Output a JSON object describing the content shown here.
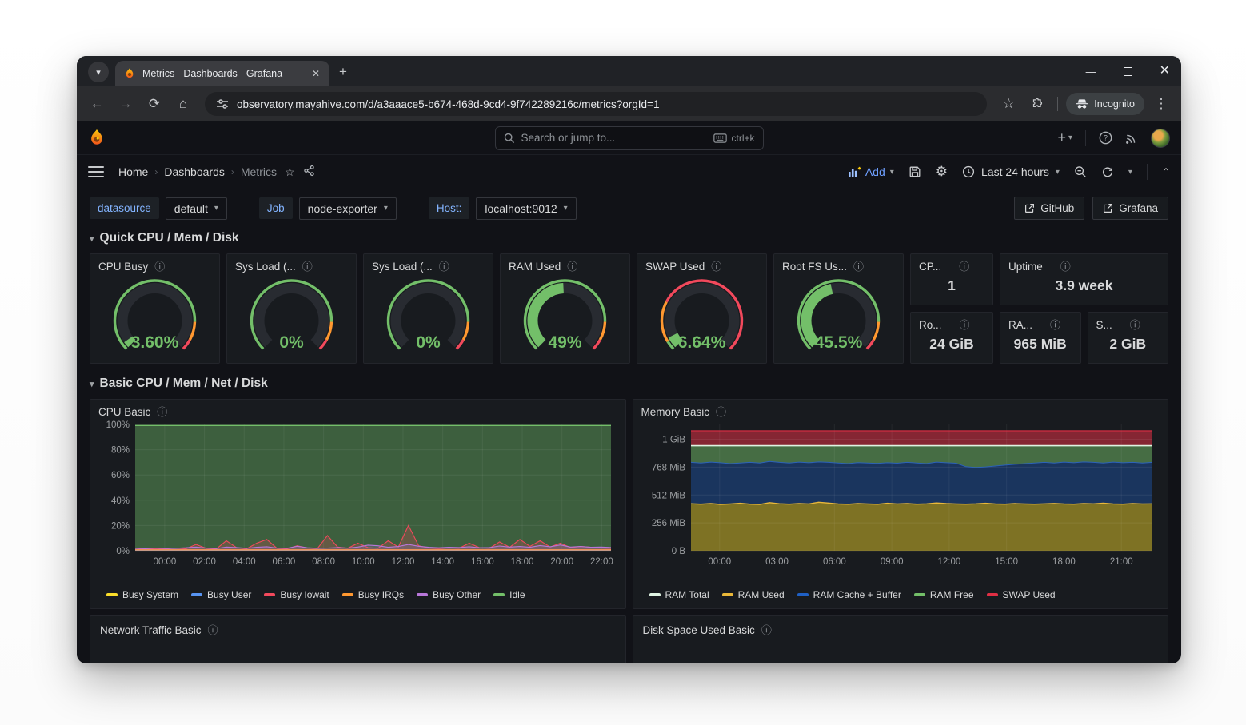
{
  "browser": {
    "tab_title": "Metrics - Dashboards - Grafana",
    "url": "observatory.mayahive.com/d/a3aaace5-b674-468d-9cd4-9f742289216c/metrics?orgId=1",
    "incognito_label": "Incognito"
  },
  "topnav": {
    "search_placeholder": "Search or jump to...",
    "search_shortcut": "ctrl+k"
  },
  "breadcrumb": {
    "items": [
      "Home",
      "Dashboards",
      "Metrics"
    ]
  },
  "toolbar": {
    "add_label": "Add",
    "time_range": "Last 24 hours"
  },
  "filters": {
    "datasource_label": "datasource",
    "datasource_value": "default",
    "job_label": "Job",
    "job_value": "node-exporter",
    "host_label": "Host:",
    "host_value": "localhost:9012"
  },
  "links": {
    "github_label": "GitHub",
    "grafana_label": "Grafana"
  },
  "sections": {
    "quick": "Quick CPU / Mem / Disk",
    "basic": "Basic CPU / Mem / Net / Disk"
  },
  "gauges": [
    {
      "title": "CPU Busy",
      "value": "3.60%",
      "fraction": 0.036,
      "ring": "default"
    },
    {
      "title": "Sys Load (...",
      "value": "0%",
      "fraction": 0.0,
      "ring": "default"
    },
    {
      "title": "Sys Load (...",
      "value": "0%",
      "fraction": 0.0,
      "ring": "default"
    },
    {
      "title": "RAM Used",
      "value": "49%",
      "fraction": 0.49,
      "ring": "default"
    },
    {
      "title": "SWAP Used",
      "value": "6.64%",
      "fraction": 0.0664,
      "ring": "swap"
    },
    {
      "title": "Root FS Us...",
      "value": "45.5%",
      "fraction": 0.455,
      "ring": "default"
    }
  ],
  "gauge_rings": {
    "default": [
      {
        "color": "#73bf69",
        "from": 0,
        "to": 0.84
      },
      {
        "color": "#ff9830",
        "from": 0.84,
        "to": 0.94
      },
      {
        "color": "#f2495c",
        "from": 0.94,
        "to": 1
      }
    ],
    "swap": [
      {
        "color": "#73bf69",
        "from": 0,
        "to": 0.05
      },
      {
        "color": "#ff9830",
        "from": 0.05,
        "to": 0.27
      },
      {
        "color": "#f2495c",
        "from": 0.27,
        "to": 1
      }
    ]
  },
  "gauge_value_color": "#73bf69",
  "stats": [
    {
      "title": "CP...",
      "value": "1"
    },
    {
      "title": "Uptime",
      "value": "3.9 week"
    },
    {
      "title": "Ro...",
      "value": "24 GiB"
    },
    {
      "title": "RA...",
      "value": "965 MiB"
    },
    {
      "title": "S...",
      "value": "2 GiB"
    }
  ],
  "chart_data": [
    {
      "id": "cpu",
      "type": "area",
      "title": "CPU Basic",
      "ylim": [
        0,
        100
      ],
      "y_ticks": [
        {
          "v": 100,
          "label": "100%"
        },
        {
          "v": 80,
          "label": "80%"
        },
        {
          "v": 60,
          "label": "60%"
        },
        {
          "v": 40,
          "label": "40%"
        },
        {
          "v": 20,
          "label": "20%"
        },
        {
          "v": 0,
          "label": "0%"
        }
      ],
      "x_ticks": [
        "00:00",
        "02:00",
        "04:00",
        "06:00",
        "08:00",
        "10:00",
        "12:00",
        "14:00",
        "16:00",
        "18:00",
        "20:00",
        "22:00"
      ],
      "layout": {
        "tick_start": 0.062,
        "tick_step": 0.0835,
        "legend_position": "bottom",
        "grid": true
      },
      "idle_level": 99.2,
      "series": [
        {
          "name": "Busy System",
          "color": "#fade2a",
          "flat": 0.4
        },
        {
          "name": "Busy User",
          "color": "#5794f2",
          "flat": 0.7
        },
        {
          "name": "Busy Iowait",
          "color": "#f2495c",
          "values": [
            2,
            1.2,
            1.8,
            1.4,
            2.2,
            1.5,
            5,
            2,
            1.4,
            8,
            2.5,
            1.6,
            6,
            9,
            2,
            1.5,
            4,
            2.2,
            1.8,
            12,
            3,
            2,
            6,
            2.5,
            2,
            8,
            3,
            20,
            4,
            2.2,
            1.8,
            2.4,
            2,
            6,
            2.5,
            2,
            7,
            2.8,
            9,
            3.5,
            8,
            3,
            6,
            2.5,
            3.5,
            2.8,
            2.2,
            2
          ]
        },
        {
          "name": "Busy IRQs",
          "color": "#ff9830",
          "flat": 0.9
        },
        {
          "name": "Busy Other",
          "color": "#b877d9",
          "values": [
            2,
            1.6,
            2.2,
            1.8,
            2,
            2.4,
            3,
            2.2,
            1.8,
            3,
            2.6,
            2,
            2.8,
            3.2,
            2.2,
            2,
            3.6,
            2.4,
            2,
            2.2,
            2.6,
            2.2,
            3,
            4.5,
            4,
            2.8,
            3.4,
            5,
            3.6,
            2.8,
            2.4,
            2.8,
            2.6,
            3.2,
            2.4,
            2.6,
            3.8,
            3,
            3.4,
            2.8,
            4.2,
            3.2,
            4.6,
            3,
            3.4,
            2.8,
            3,
            2.6
          ]
        },
        {
          "name": "Idle",
          "color": "#73bf69",
          "idle_area": true
        }
      ]
    },
    {
      "id": "mem",
      "type": "area",
      "title": "Memory Basic",
      "ylim": [
        0,
        1160
      ],
      "y_ticks": [
        {
          "v": 1024,
          "label": "1 GiB"
        },
        {
          "v": 768,
          "label": "768 MiB"
        },
        {
          "v": 512,
          "label": "512 MiB"
        },
        {
          "v": 256,
          "label": "256 MiB"
        },
        {
          "v": 0,
          "label": "0 B"
        }
      ],
      "x_ticks": [
        "00:00",
        "03:00",
        "06:00",
        "09:00",
        "12:00",
        "15:00",
        "18:00",
        "21:00"
      ],
      "layout": {
        "tick_start": 0.062,
        "tick_step": 0.1244,
        "legend_position": "bottom",
        "grid": true
      },
      "bands": {
        "ram_used": [
          432,
          428,
          434,
          426,
          430,
          436,
          428,
          425,
          442,
          432,
          428,
          434,
          430,
          446,
          438,
          430,
          427,
          433,
          430,
          427,
          436,
          430,
          433,
          428,
          431,
          439,
          433,
          430,
          428,
          431,
          436,
          430,
          428,
          433,
          430,
          428,
          431,
          435,
          430,
          428,
          433,
          431,
          437,
          430,
          428,
          433,
          430,
          431
        ],
        "cache_top": [
          812,
          806,
          814,
          808,
          800,
          806,
          812,
          806,
          820,
          812,
          806,
          814,
          808,
          816,
          812,
          806,
          800,
          810,
          806,
          802,
          808,
          804,
          812,
          806,
          800,
          814,
          808,
          804,
          772,
          764,
          770,
          778,
          786,
          794,
          800,
          806,
          812,
          806,
          814,
          808,
          816,
          812,
          806,
          814,
          808,
          812,
          806,
          812
        ],
        "free_top": 965,
        "swap_top": 1102,
        "ram_total_line": 965
      },
      "legend": [
        {
          "label": "RAM Total",
          "color": "#dff3e2"
        },
        {
          "label": "RAM Used",
          "color": "#eab839"
        },
        {
          "label": "RAM Cache + Buffer",
          "color": "#1f60c4"
        },
        {
          "label": "RAM Free",
          "color": "#73bf69"
        },
        {
          "label": "SWAP Used",
          "color": "#e02f44"
        }
      ]
    }
  ],
  "bottom_panels": [
    {
      "title": "Network Traffic Basic"
    },
    {
      "title": "Disk Space Used Basic"
    }
  ]
}
